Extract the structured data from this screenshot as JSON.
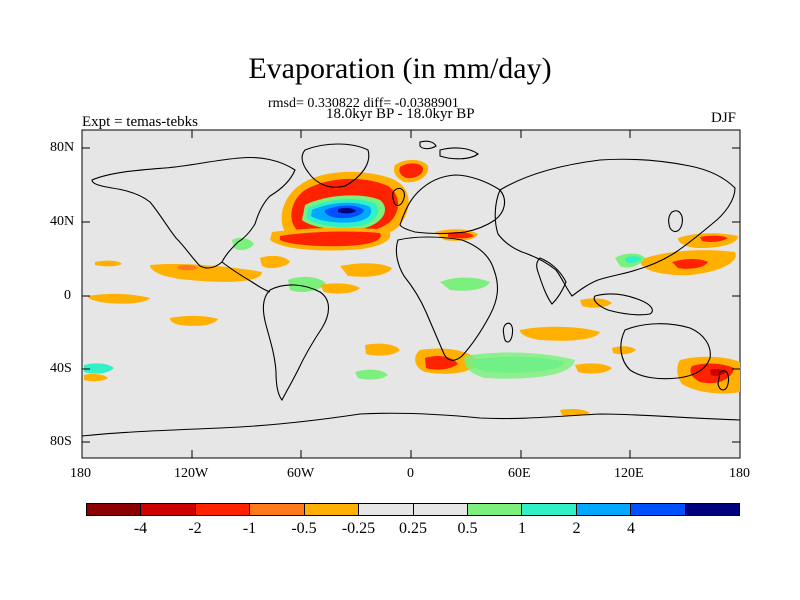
{
  "title": "Evaporation (in mm/day)",
  "stats": "rmsd= 0.330822 diff= -0.0388901",
  "period": "18.0kyr BP - 18.0kyr BP",
  "experiment": "Expt = temas-tebks",
  "season": "DJF",
  "y_ticks": [
    "80N",
    "40N",
    "0",
    "40S",
    "80S"
  ],
  "x_ticks": [
    "180",
    "120W",
    "60W",
    "0",
    "60E",
    "120E",
    "180"
  ],
  "colorbar": {
    "colors": [
      "#8b0000",
      "#cd0000",
      "#ff2200",
      "#ff7a1a",
      "#ffb000",
      "#e6e6e6",
      "#e6e6e6",
      "#7cf07c",
      "#30f0c8",
      "#00a8ff",
      "#0050ff",
      "#00007f"
    ],
    "labels": [
      "-4",
      "-2",
      "-1",
      "-0.5",
      "-0.25",
      "0.25",
      "0.5",
      "1",
      "2",
      "4"
    ]
  }
}
